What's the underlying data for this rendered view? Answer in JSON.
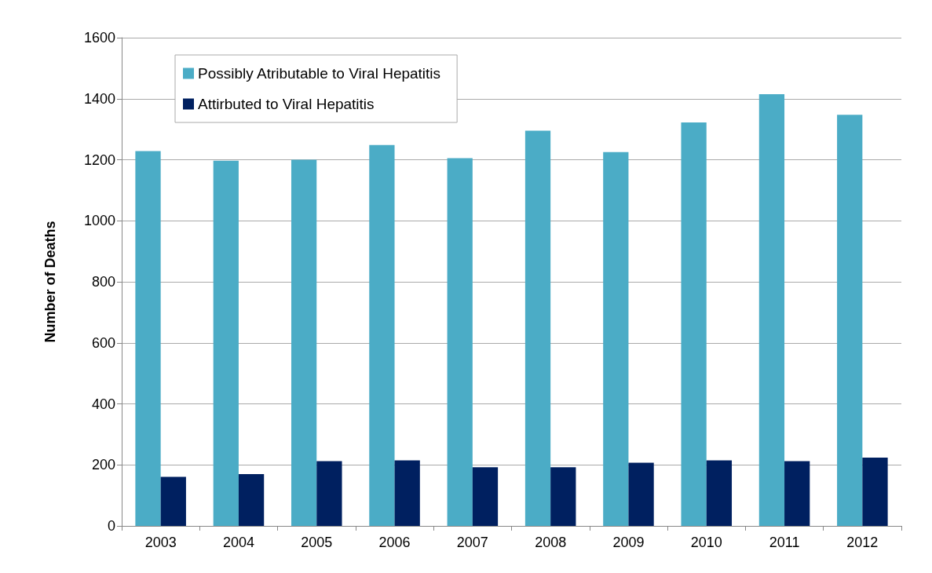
{
  "chart_data": {
    "type": "bar",
    "ylabel": "Number of Deaths",
    "categories": [
      "2003",
      "2004",
      "2005",
      "2006",
      "2007",
      "2008",
      "2009",
      "2010",
      "2011",
      "2012"
    ],
    "series": [
      {
        "name": "Possibly Atributable to Viral Hepatitis",
        "color": "#4bacc6",
        "values": [
          1228,
          1197,
          1200,
          1248,
          1205,
          1295,
          1225,
          1322,
          1415,
          1347
        ]
      },
      {
        "name": "Attirbuted to Viral Hepatitis",
        "color": "#002060",
        "values": [
          161,
          170,
          212,
          215,
          192,
          192,
          207,
          215,
          212,
          224
        ]
      }
    ],
    "ylim": [
      0,
      1600
    ],
    "yticks": [
      0,
      200,
      400,
      600,
      800,
      1000,
      1200,
      1400,
      1600
    ],
    "grid": "y",
    "legend": "top left"
  }
}
